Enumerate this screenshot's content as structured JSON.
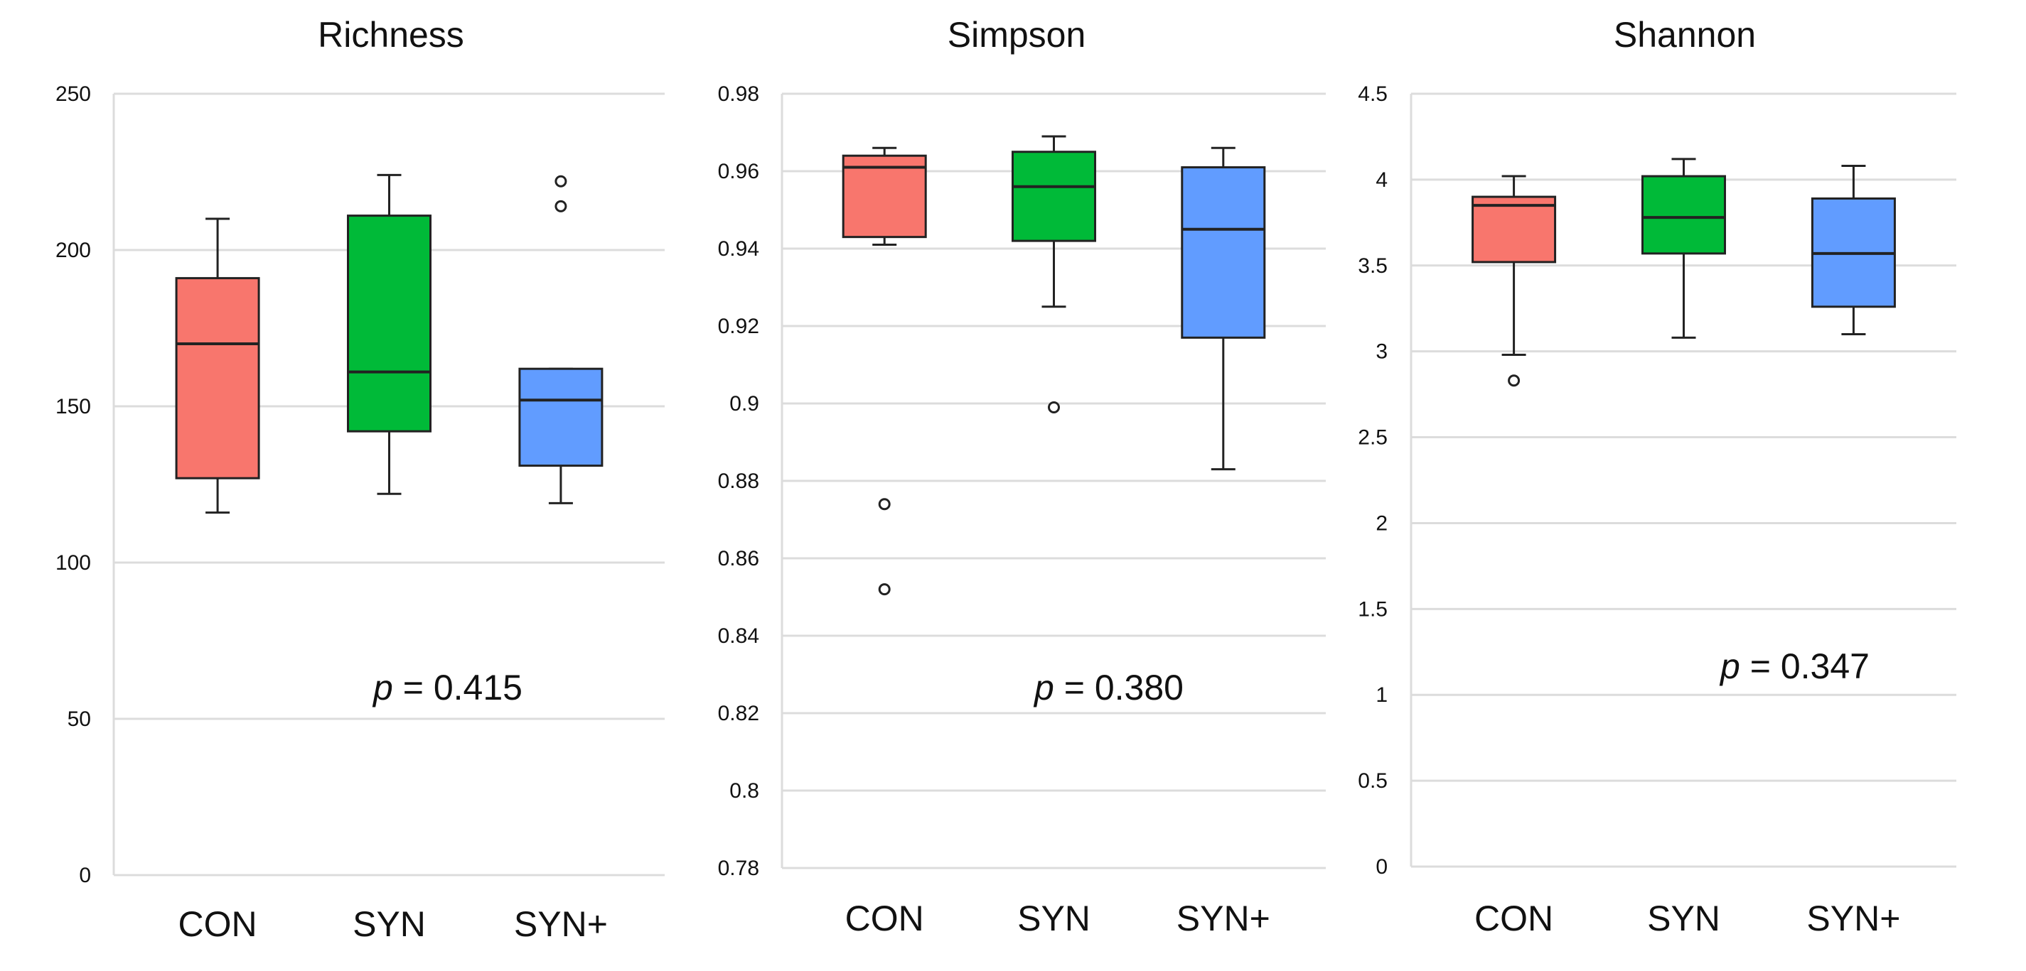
{
  "chart_data": [
    {
      "type": "box",
      "title": "Richness",
      "categories": [
        "CON",
        "SYN",
        "SYN+"
      ],
      "ylim": [
        0,
        250
      ],
      "yticks": [
        0,
        50,
        100,
        150,
        200,
        250
      ],
      "ytick_labels": [
        "0",
        "50",
        "100",
        "150",
        "200",
        "250"
      ],
      "grid": true,
      "p_italic": "p",
      "p_text": " = 0.415",
      "boxes": [
        {
          "name": "CON",
          "color": "#F8766D",
          "min": 116,
          "q1": 127,
          "median": 170,
          "q3": 191,
          "max": 210,
          "outliers": []
        },
        {
          "name": "SYN",
          "color": "#00BA38",
          "min": 122,
          "q1": 142,
          "median": 161,
          "q3": 211,
          "max": 224,
          "outliers": []
        },
        {
          "name": "SYN+",
          "color": "#619CFF",
          "min": 119,
          "q1": 131,
          "median": 152,
          "q3": 162,
          "max": 162,
          "outliers": [
            214,
            222
          ]
        }
      ]
    },
    {
      "type": "box",
      "title": "Simpson",
      "categories": [
        "CON",
        "SYN",
        "SYN+"
      ],
      "ylim": [
        0.78,
        0.98
      ],
      "yticks": [
        0.78,
        0.8,
        0.82,
        0.84,
        0.86,
        0.88,
        0.9,
        0.92,
        0.94,
        0.96,
        0.98
      ],
      "ytick_labels": [
        "0.78",
        "0.8",
        "0.82",
        "0.84",
        "0.86",
        "0.88",
        "0.9",
        "0.92",
        "0.94",
        "0.96",
        "0.98"
      ],
      "grid": true,
      "p_italic": "p",
      "p_text": " = 0.380",
      "boxes": [
        {
          "name": "CON",
          "color": "#F8766D",
          "min": 0.941,
          "q1": 0.943,
          "median": 0.961,
          "q3": 0.964,
          "max": 0.966,
          "outliers": [
            0.852,
            0.874
          ]
        },
        {
          "name": "SYN",
          "color": "#00BA38",
          "min": 0.925,
          "q1": 0.942,
          "median": 0.956,
          "q3": 0.965,
          "max": 0.969,
          "outliers": [
            0.899
          ]
        },
        {
          "name": "SYN+",
          "color": "#619CFF",
          "min": 0.883,
          "q1": 0.917,
          "median": 0.945,
          "q3": 0.961,
          "max": 0.966,
          "outliers": []
        }
      ]
    },
    {
      "type": "box",
      "title": "Shannon",
      "categories": [
        "CON",
        "SYN",
        "SYN+"
      ],
      "ylim": [
        0,
        4.5
      ],
      "yticks": [
        0,
        0.5,
        1,
        1.5,
        2,
        2.5,
        3,
        3.5,
        4,
        4.5
      ],
      "ytick_labels": [
        "0",
        "0.5",
        "1",
        "1.5",
        "2",
        "2.5",
        "3",
        "3.5",
        "4",
        "4.5"
      ],
      "grid": true,
      "p_italic": "p",
      "p_text": " = 0.347",
      "boxes": [
        {
          "name": "CON",
          "color": "#F8766D",
          "min": 2.98,
          "q1": 3.52,
          "median": 3.85,
          "q3": 3.9,
          "max": 4.02,
          "outliers": [
            2.83
          ]
        },
        {
          "name": "SYN",
          "color": "#00BA38",
          "min": 3.08,
          "q1": 3.57,
          "median": 3.78,
          "q3": 4.02,
          "max": 4.12,
          "outliers": []
        },
        {
          "name": "SYN+",
          "color": "#619CFF",
          "min": 3.1,
          "q1": 3.26,
          "median": 3.57,
          "q3": 3.89,
          "max": 4.08,
          "outliers": []
        }
      ]
    }
  ]
}
